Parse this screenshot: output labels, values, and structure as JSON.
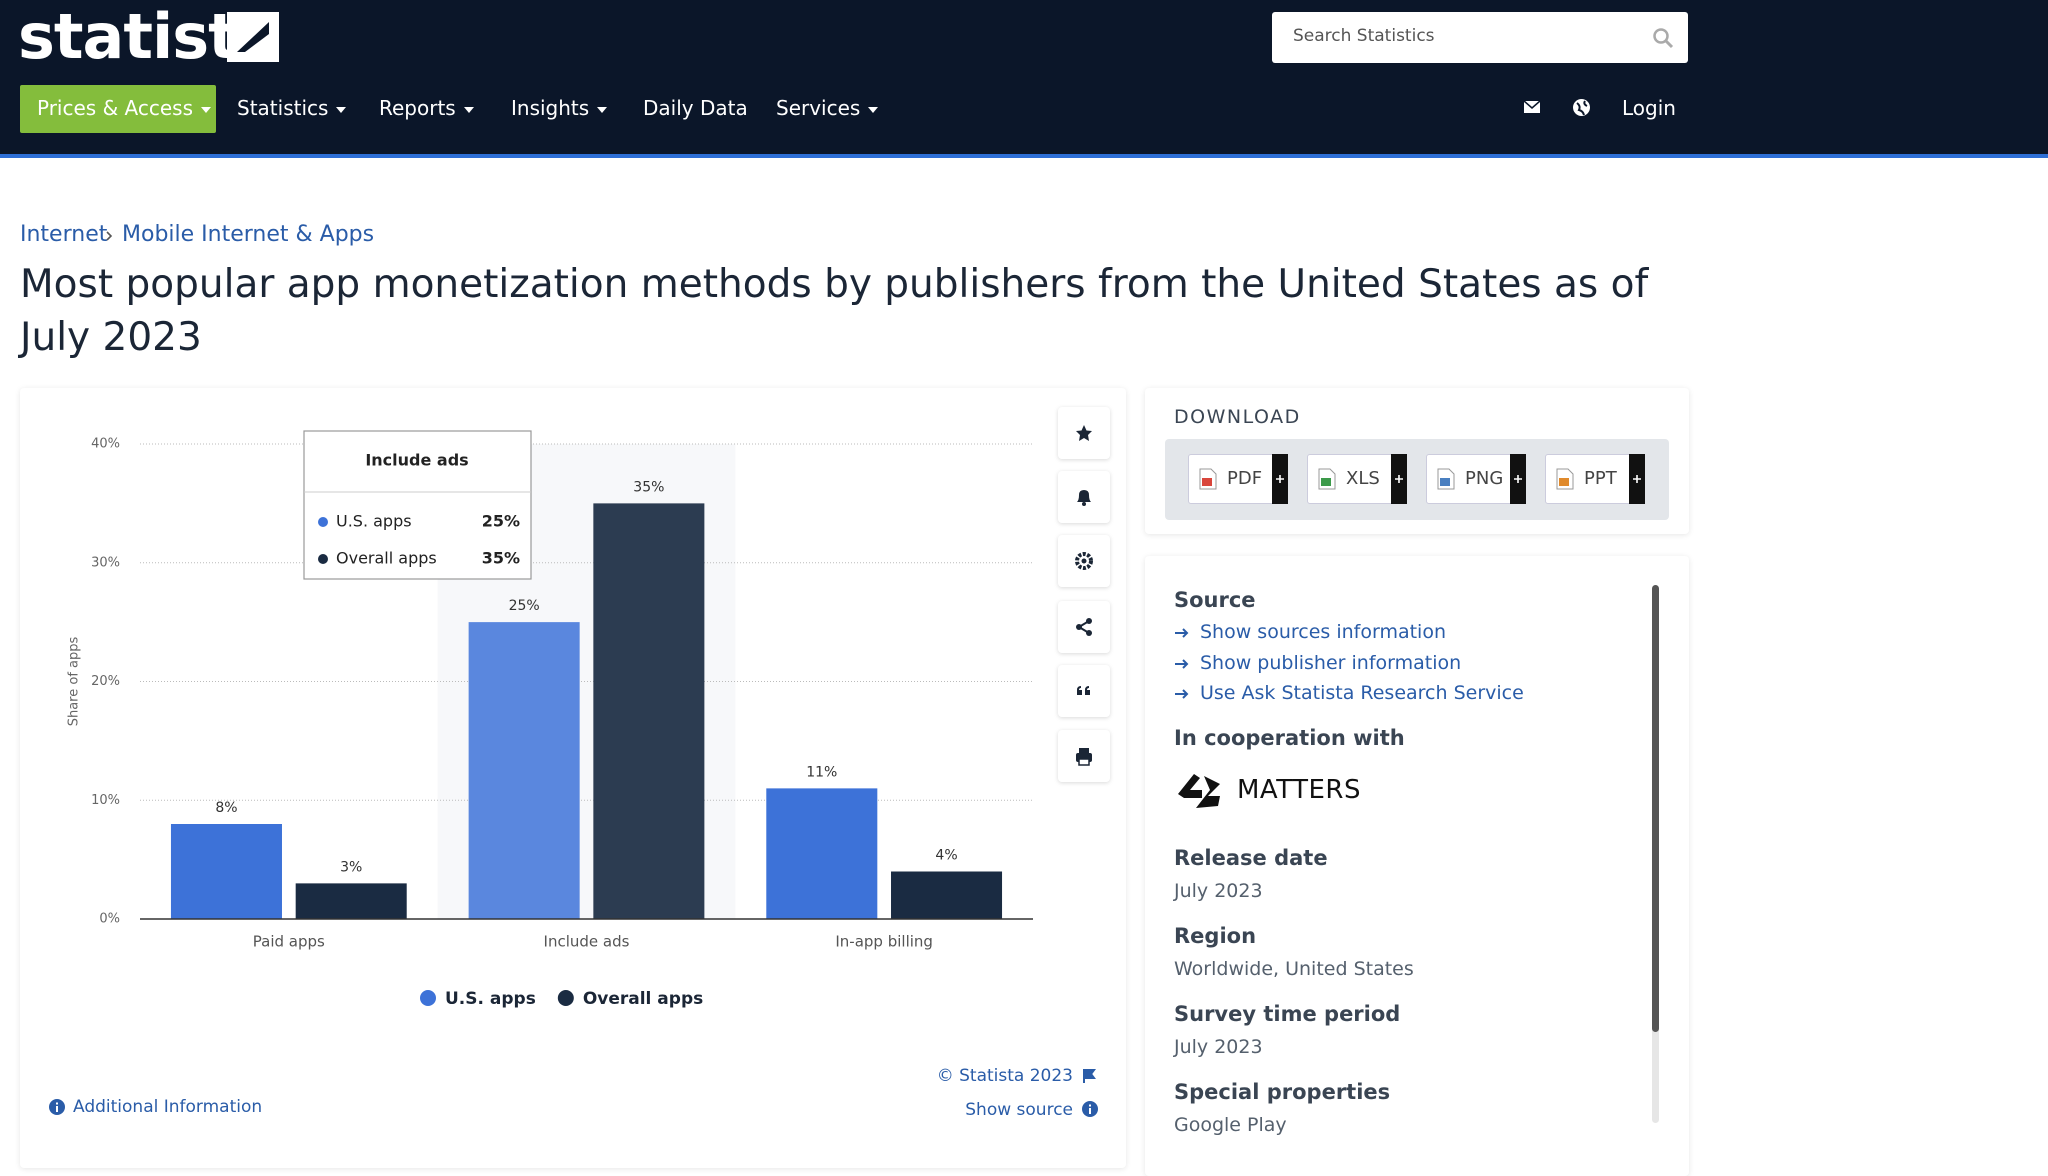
{
  "header": {
    "logo": "statista",
    "search_placeholder": "Search Statistics",
    "nav": [
      "Prices & Access",
      "Statistics",
      "Reports",
      "Insights",
      "Daily Data",
      "Services"
    ],
    "login": "Login"
  },
  "breadcrumb": [
    "Internet",
    "Mobile Internet & Apps"
  ],
  "title": "Most popular app monetization methods by publishers from the United States as of July 2023",
  "chart_data": {
    "type": "bar",
    "categories": [
      "Paid apps",
      "Include ads",
      "In-app billing"
    ],
    "series": [
      {
        "name": "U.S. apps",
        "color": "#3d72d8",
        "values": [
          8,
          25,
          11
        ],
        "value_labels": [
          "8%",
          "25%",
          "11%"
        ]
      },
      {
        "name": "Overall apps",
        "color": "#1a2b42",
        "values": [
          3,
          35,
          4
        ],
        "value_labels": [
          "3%",
          "35%",
          "4%"
        ]
      }
    ],
    "y_label": "Share of apps",
    "ylim": [
      0,
      40
    ],
    "yticks": [
      {
        "value": 0,
        "label": "0%"
      },
      {
        "value": 10,
        "label": "10%"
      },
      {
        "value": 20,
        "label": "20%"
      },
      {
        "value": 30,
        "label": "30%"
      },
      {
        "value": 40,
        "label": "40%"
      }
    ],
    "grid": true
  },
  "chart_footer": {
    "copyright": "© Statista 2023",
    "show_source": "Show source",
    "additional_information": "Additional Information"
  },
  "download": {
    "title": "DOWNLOAD",
    "formats": [
      "PDF",
      "XLS",
      "PNG",
      "PPT"
    ]
  },
  "info": {
    "source_title": "Source",
    "source_links": [
      "Show sources information",
      "Show publisher information",
      "Use Ask Statista Research Service"
    ],
    "cooperation_title": "In cooperation with",
    "cooperation_logo": "MATTERS",
    "sections": [
      {
        "title": "Release date",
        "value": "July 2023"
      },
      {
        "title": "Region",
        "value": "Worldwide, United States"
      },
      {
        "title": "Survey time period",
        "value": "July 2023"
      },
      {
        "title": "Special properties",
        "value": "Google Play"
      }
    ]
  }
}
